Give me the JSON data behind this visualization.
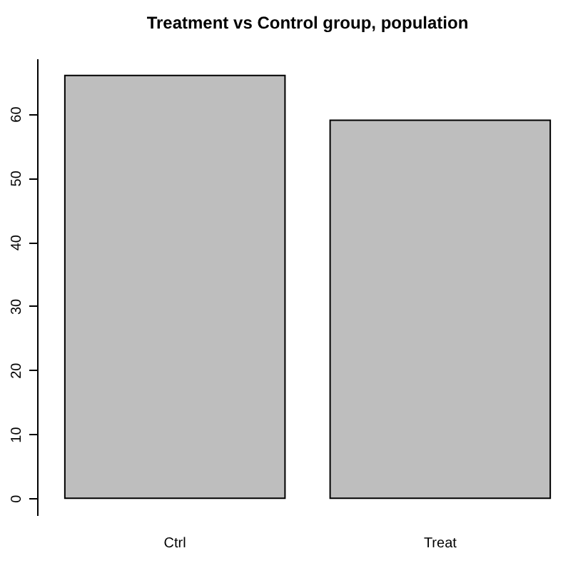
{
  "chart_data": {
    "type": "bar",
    "title": "Treatment vs Control group, population",
    "categories": [
      "Ctrl",
      "Treat"
    ],
    "values": [
      66,
      59
    ],
    "color": "#bebebe",
    "ylim": [
      -2.64,
      68.64
    ],
    "yticks": [
      0,
      10,
      20,
      30,
      40,
      50,
      60
    ],
    "grid": false
  }
}
